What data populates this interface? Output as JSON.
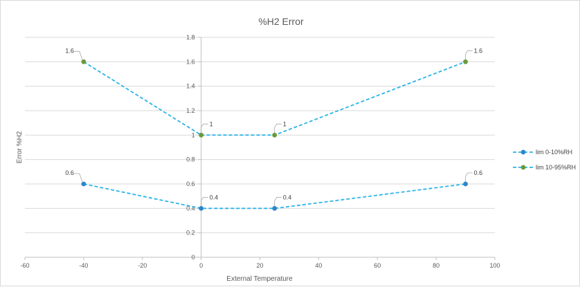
{
  "chart_data": {
    "type": "line",
    "title": "%H2 Error",
    "xlabel": "External Temperature",
    "ylabel": "Error %H2",
    "xlim": [
      -60,
      100
    ],
    "ylim": [
      0,
      1.8
    ],
    "xticks": [
      -60,
      -40,
      -20,
      0,
      20,
      40,
      60,
      80,
      100
    ],
    "yticks": [
      0,
      0.2,
      0.4,
      0.6,
      0.8,
      1,
      1.2,
      1.4,
      1.6,
      1.8
    ],
    "grid": true,
    "legend_position": "right",
    "series": [
      {
        "name": "lim 0-10%RH",
        "color": "#2e86c9",
        "line_color": "#2bb3e8",
        "line_style": "dashed",
        "x": [
          -40,
          0,
          25,
          90
        ],
        "y": [
          0.6,
          0.4,
          0.4,
          0.6
        ],
        "labels": [
          "0.6",
          "0.4",
          "0.4",
          "0.6"
        ]
      },
      {
        "name": "lim 10-95%RH",
        "color": "#6a9a3a",
        "line_color": "#2bb3e8",
        "line_style": "dashed",
        "x": [
          -40,
          0,
          25,
          90
        ],
        "y": [
          1.6,
          1,
          1,
          1.6
        ],
        "labels": [
          "1.6",
          "1",
          "1",
          "1.6"
        ]
      }
    ]
  }
}
